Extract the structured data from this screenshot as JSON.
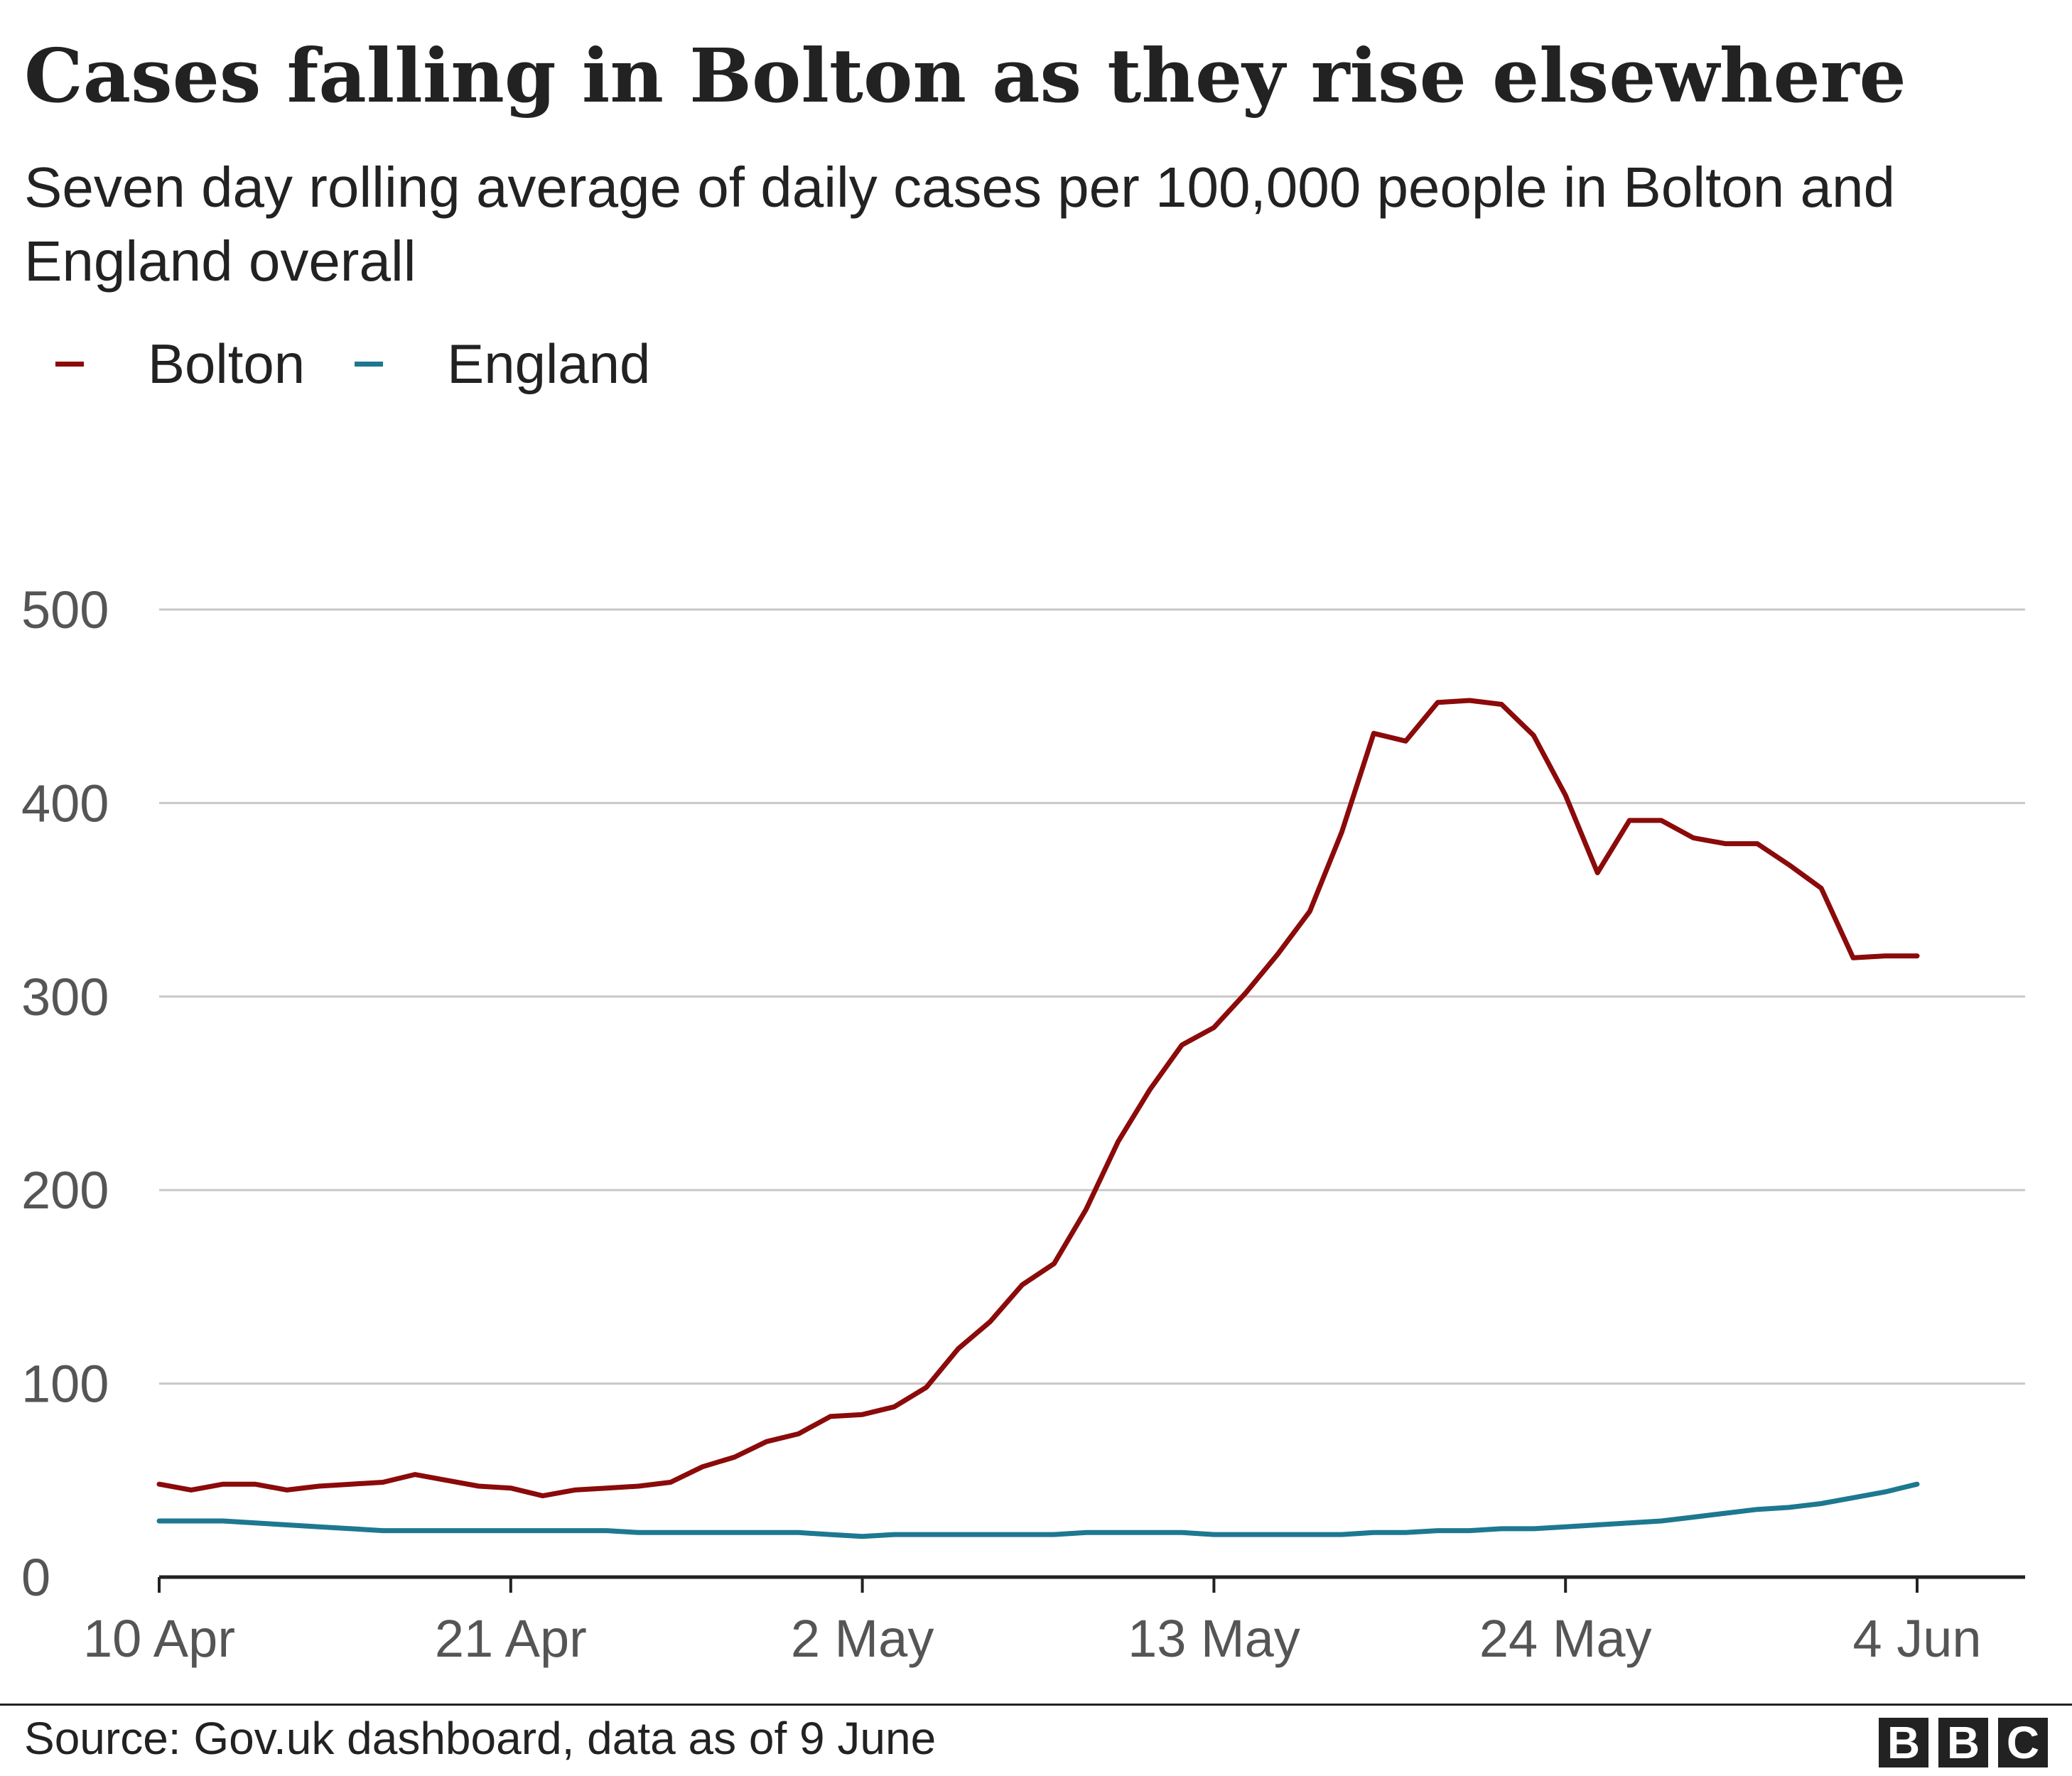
{
  "header": {
    "title": "Cases falling in Bolton as they rise elsewhere",
    "subtitle": "Seven day rolling average of daily cases per 100,000 people in Bolton and England overall"
  },
  "legend": [
    {
      "label": "Bolton",
      "color": "#8b0a0a"
    },
    {
      "label": "England",
      "color": "#1d7890"
    }
  ],
  "footer": {
    "source": "Source: Gov.uk dashboard, data as of  9 June",
    "logo_letters": [
      "B",
      "B",
      "C"
    ]
  },
  "chart_data": {
    "type": "line",
    "x_start": "2021-04-10",
    "x_label_dates": [
      "10 Apr",
      "21 Apr",
      "2 May",
      "13 May",
      "24 May",
      "4 Jun"
    ],
    "ylim": [
      0,
      500
    ],
    "yticks": [
      0,
      100,
      200,
      300,
      400,
      500
    ],
    "grid": true,
    "legend_position": "top-left",
    "xlabel": "",
    "ylabel": "",
    "series": [
      {
        "name": "Bolton",
        "color": "#8b0a0a",
        "values": [
          48,
          45,
          48,
          48,
          45,
          47,
          48,
          49,
          53,
          50,
          47,
          46,
          42,
          45,
          46,
          47,
          49,
          57,
          62,
          70,
          74,
          83,
          84,
          88,
          98,
          118,
          132,
          151,
          162,
          190,
          225,
          252,
          275,
          284,
          302,
          322,
          344,
          385,
          436,
          432,
          452,
          453,
          451,
          435,
          404,
          364,
          391,
          391,
          382,
          379,
          379,
          368,
          356,
          320,
          321,
          321
        ]
      },
      {
        "name": "England",
        "color": "#1d7890",
        "values": [
          29,
          29,
          29,
          28,
          27,
          26,
          25,
          24,
          24,
          24,
          24,
          24,
          24,
          24,
          24,
          23,
          23,
          23,
          23,
          23,
          23,
          22,
          21,
          22,
          22,
          22,
          22,
          22,
          22,
          23,
          23,
          23,
          23,
          22,
          22,
          22,
          22,
          22,
          23,
          23,
          24,
          24,
          25,
          25,
          26,
          27,
          28,
          29,
          31,
          33,
          35,
          36,
          38,
          41,
          44,
          48
        ]
      }
    ]
  }
}
